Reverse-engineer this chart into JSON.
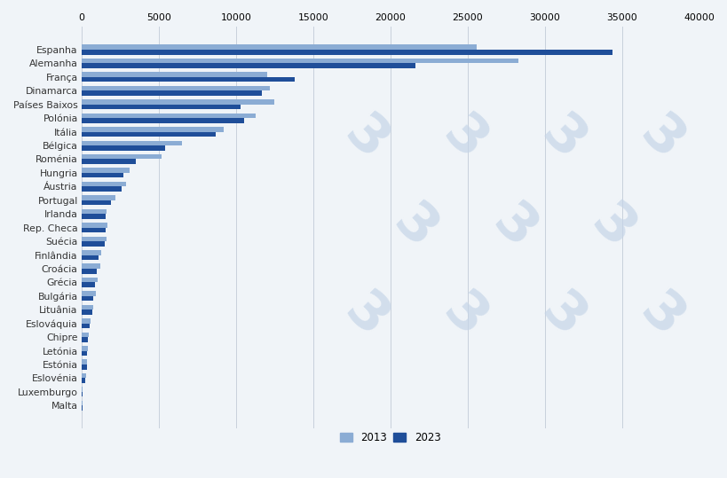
{
  "countries": [
    "Espanha",
    "Alemanha",
    "França",
    "Dinamarca",
    "Países Baixos",
    "Polónia",
    "Itália",
    "Bélgica",
    "Roménia",
    "Hungria",
    "Áustria",
    "Portugal",
    "Irlanda",
    "Rep. Checa",
    "Suécia",
    "Finlândia",
    "Croácia",
    "Grécia",
    "Bulgária",
    "Lituânia",
    "Eslováquia",
    "Chipre",
    "Letónia",
    "Estónia",
    "Eslovénia",
    "Luxemburgo",
    "Malta"
  ],
  "values_2013": [
    25600,
    28300,
    12000,
    12200,
    12500,
    11300,
    9200,
    6500,
    5200,
    3100,
    2900,
    2200,
    1600,
    1700,
    1600,
    1250,
    1200,
    1050,
    900,
    780,
    580,
    460,
    400,
    370,
    270,
    80,
    50
  ],
  "values_2023": [
    34400,
    21600,
    13800,
    11700,
    10300,
    10500,
    8700,
    5400,
    3500,
    2700,
    2600,
    1900,
    1550,
    1550,
    1500,
    1100,
    1000,
    850,
    780,
    680,
    530,
    400,
    360,
    340,
    240,
    80,
    45
  ],
  "color_2013": "#8bacd4",
  "color_2023": "#1f4e99",
  "legend_2013": "2013",
  "legend_2023": "2023",
  "xlim": [
    0,
    40000
  ],
  "xticks": [
    0,
    5000,
    10000,
    15000,
    20000,
    25000,
    30000,
    35000,
    40000
  ],
  "bar_height": 0.36,
  "figure_bg": "#f0f4f8"
}
